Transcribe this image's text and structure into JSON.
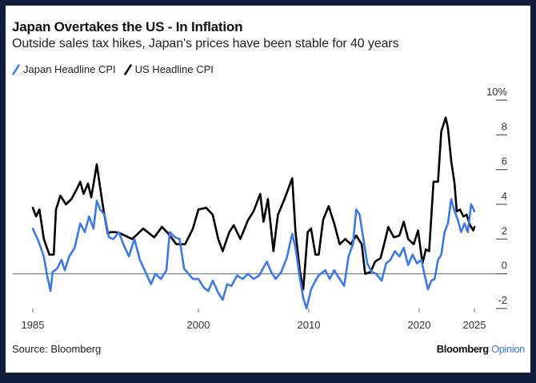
{
  "header": {
    "title": "Japan Overtakes the US - In Inflation",
    "subtitle": "Outside sales tax hikes, Japan's prices have been stable for 40 years"
  },
  "footer": {
    "source": "Source: Bloomberg",
    "brand_primary": "Bloomberg",
    "brand_secondary": "Opinion"
  },
  "colors": {
    "japan": "#3c79e6",
    "us": "#000000",
    "background": "#101c3b",
    "brand_accent": "#3c79e6"
  },
  "chart_data": {
    "type": "line",
    "title": "Japan Overtakes the US - In Inflation",
    "subtitle": "Outside sales tax hikes, Japan's prices have been stable for 40 years",
    "xlabel": "",
    "ylabel": "",
    "xlim": [
      1985,
      2025
    ],
    "ylim": [
      -2,
      10
    ],
    "x_ticks": [
      1985,
      2000,
      2010,
      2020,
      2025
    ],
    "x_tick_labels": [
      "1985",
      "2000",
      "2010",
      "2020",
      "2025"
    ],
    "y_ticks": [
      -2,
      0,
      2,
      4,
      6,
      8,
      10
    ],
    "y_tick_labels": [
      "-2",
      "0",
      "2",
      "4",
      "6",
      "8",
      "10%"
    ],
    "y_axis_side": "right",
    "zero_line": true,
    "grid": false,
    "legend_position": "top-left",
    "series": [
      {
        "name": "Japan Headline CPI",
        "color": "#3c79e6",
        "x": [
          1985.0,
          1985.5,
          1986.0,
          1986.3,
          1986.6,
          1986.8,
          1987.2,
          1987.6,
          1987.9,
          1988.3,
          1988.8,
          1989.3,
          1989.7,
          1990.1,
          1990.5,
          1990.8,
          1991.1,
          1991.5,
          1991.9,
          1992.3,
          1992.8,
          1993.2,
          1993.7,
          1994.2,
          1994.7,
          1995.2,
          1995.7,
          1996.1,
          1996.6,
          1997.1,
          1997.4,
          1997.9,
          1998.3,
          1998.7,
          1999.1,
          1999.5,
          2000.0,
          2000.5,
          2000.9,
          2001.3,
          2001.8,
          2002.2,
          2002.6,
          2003.0,
          2003.5,
          2004.0,
          2004.5,
          2005.0,
          2005.5,
          2006.2,
          2006.6,
          2007.0,
          2007.5,
          2008.0,
          2008.5,
          2008.8,
          2009.2,
          2009.5,
          2009.8,
          2010.2,
          2010.6,
          2010.9,
          2011.5,
          2011.9,
          2012.3,
          2012.8,
          2013.2,
          2013.6,
          2014.0,
          2014.3,
          2014.6,
          2014.9,
          2015.3,
          2015.7,
          2016.1,
          2016.6,
          2017.0,
          2017.4,
          2017.8,
          2018.2,
          2018.6,
          2019.0,
          2019.4,
          2019.8,
          2020.2,
          2020.5,
          2020.8,
          2021.1,
          2021.4,
          2021.7,
          2022.0,
          2022.3,
          2022.6,
          2022.9,
          2023.2,
          2023.5,
          2023.8,
          2024.1,
          2024.4,
          2024.7,
          2025.0
        ],
        "values": [
          2.6,
          1.9,
          1.0,
          -0.1,
          -1.0,
          0.1,
          0.3,
          0.8,
          0.2,
          1.0,
          1.5,
          2.9,
          2.4,
          3.3,
          2.6,
          4.2,
          3.7,
          3.4,
          2.1,
          2.0,
          2.4,
          1.7,
          1.0,
          2.0,
          0.8,
          0.1,
          -0.6,
          0.0,
          -0.3,
          0.2,
          2.4,
          2.1,
          2.0,
          0.3,
          0.0,
          -0.3,
          -0.3,
          -0.8,
          -1.0,
          -0.4,
          -1.1,
          -1.5,
          -0.6,
          -0.7,
          -0.1,
          -0.3,
          0.0,
          -0.3,
          -0.1,
          0.7,
          0.1,
          -0.3,
          0.1,
          0.9,
          2.3,
          1.5,
          -0.3,
          -1.4,
          -2.0,
          -0.9,
          -0.4,
          -0.1,
          0.2,
          -0.3,
          0.2,
          -0.3,
          -0.7,
          1.0,
          1.7,
          3.7,
          3.4,
          2.2,
          0.6,
          0.1,
          0.0,
          -0.4,
          0.6,
          0.8,
          1.3,
          1.0,
          1.5,
          0.5,
          1.1,
          0.6,
          0.8,
          -0.1,
          -0.9,
          -0.4,
          -0.3,
          0.8,
          1.1,
          2.4,
          2.9,
          4.3,
          3.6,
          3.1,
          2.4,
          2.9,
          2.4,
          4.0,
          3.6
        ]
      },
      {
        "name": "US Headline CPI",
        "color": "#000000",
        "x": [
          1985.0,
          1985.3,
          1985.6,
          1986.0,
          1986.5,
          1986.9,
          1987.1,
          1987.5,
          1988.0,
          1988.5,
          1989.0,
          1989.3,
          1989.6,
          1990.0,
          1990.3,
          1990.8,
          1991.0,
          1991.4,
          1991.8,
          1992.0,
          1992.5,
          1993.0,
          1994.0,
          1995.0,
          1996.0,
          1996.7,
          1997.3,
          1998.0,
          1998.8,
          1999.5,
          2000.0,
          2000.7,
          2001.3,
          2001.8,
          2002.2,
          2002.8,
          2003.2,
          2003.8,
          2004.5,
          2005.0,
          2005.6,
          2005.9,
          2006.3,
          2006.8,
          2007.2,
          2007.8,
          2008.5,
          2008.8,
          2009.2,
          2009.5,
          2009.9,
          2010.2,
          2010.6,
          2010.9,
          2011.3,
          2011.8,
          2012.3,
          2012.8,
          2013.3,
          2013.8,
          2014.3,
          2014.8,
          2015.1,
          2015.6,
          2016.0,
          2016.5,
          2016.9,
          2017.2,
          2017.7,
          2018.2,
          2018.6,
          2019.0,
          2019.5,
          2019.9,
          2020.3,
          2020.6,
          2020.9,
          2021.3,
          2021.7,
          2022.0,
          2022.4,
          2022.6,
          2022.9,
          2023.2,
          2023.4,
          2023.7,
          2024.0,
          2024.3,
          2024.6,
          2024.9,
          2025.0
        ],
        "values": [
          3.8,
          3.3,
          3.7,
          2.0,
          1.1,
          1.1,
          3.7,
          4.5,
          4.0,
          4.3,
          4.9,
          5.3,
          4.6,
          5.2,
          4.4,
          6.3,
          5.4,
          3.7,
          2.3,
          2.4,
          2.4,
          2.3,
          2.0,
          2.6,
          2.1,
          2.7,
          2.3,
          1.7,
          1.7,
          2.6,
          3.7,
          3.8,
          3.4,
          2.0,
          1.3,
          2.4,
          2.8,
          2.0,
          3.1,
          3.6,
          4.6,
          3.0,
          4.3,
          1.3,
          3.4,
          4.3,
          5.5,
          2.4,
          0.1,
          -0.9,
          2.4,
          2.6,
          1.1,
          1.1,
          3.1,
          3.9,
          2.9,
          1.7,
          2.0,
          1.7,
          2.2,
          1.7,
          0.0,
          0.1,
          0.7,
          0.9,
          1.9,
          2.7,
          2.1,
          2.2,
          3.0,
          2.0,
          1.7,
          2.5,
          0.6,
          1.4,
          1.3,
          5.3,
          5.3,
          8.2,
          9.0,
          8.4,
          6.5,
          5.2,
          3.6,
          3.7,
          3.3,
          3.4,
          2.8,
          2.5,
          2.7
        ]
      }
    ]
  }
}
